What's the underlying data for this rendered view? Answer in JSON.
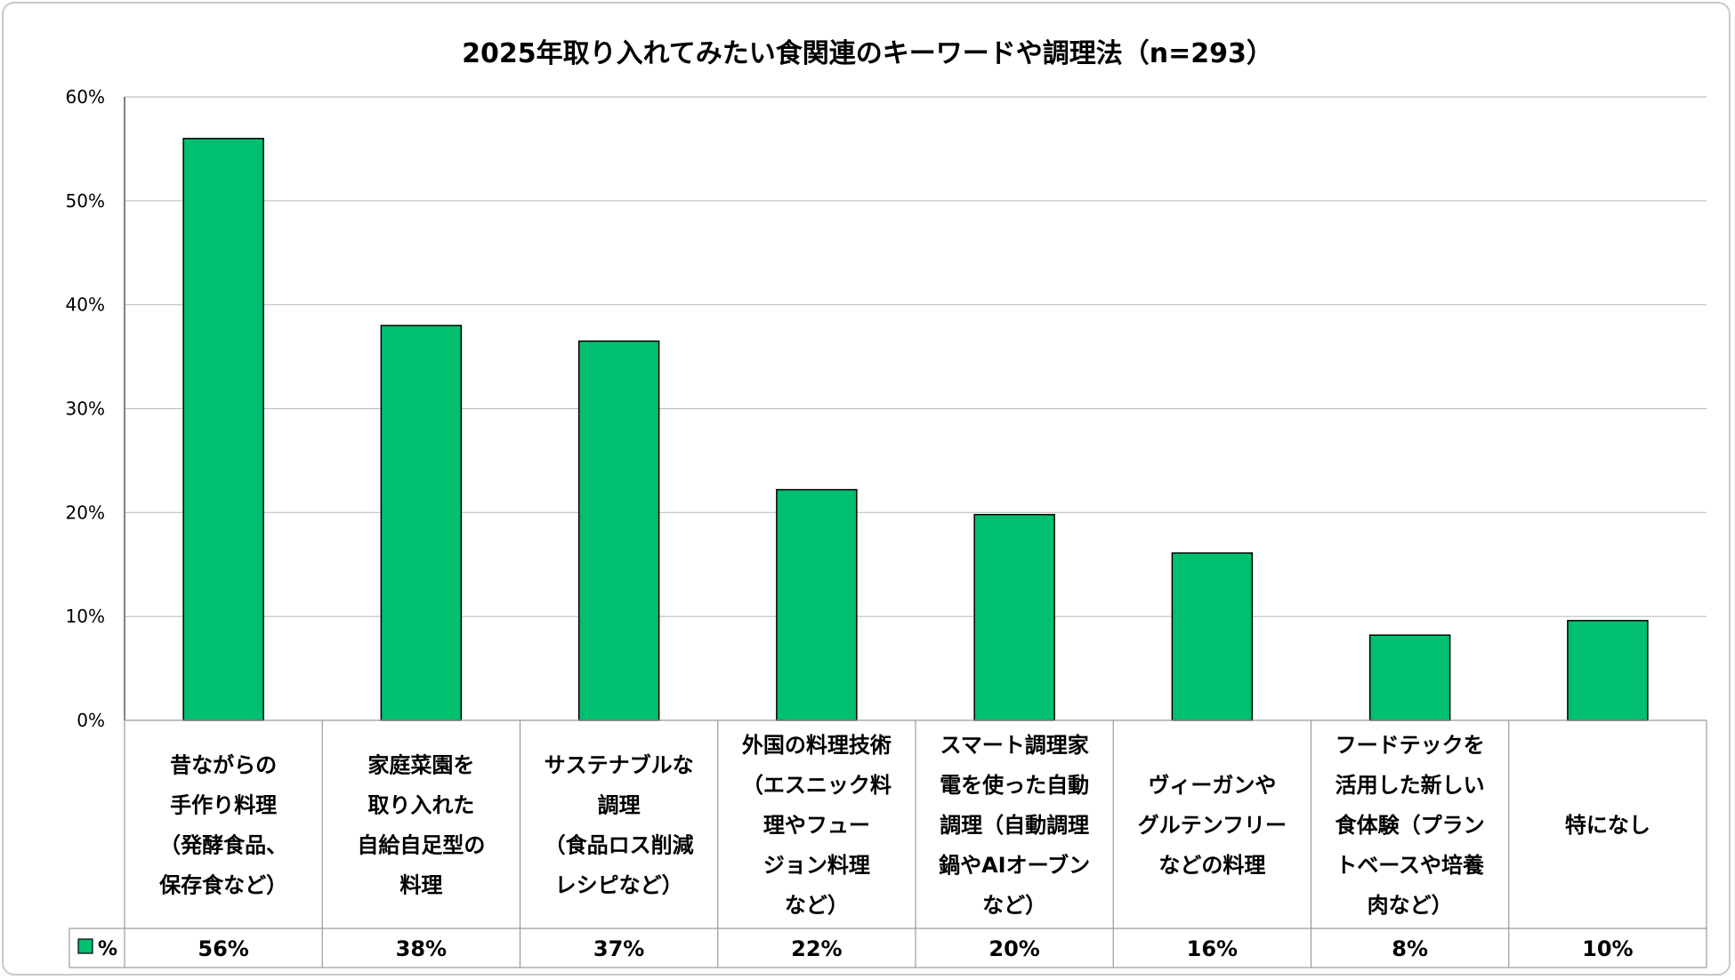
{
  "chart_data": {
    "type": "bar",
    "title": "2025年取り入れてみたい食関連のキーワードや調理法（n=293）",
    "series_name": "%",
    "color": "#00bf6f",
    "ylim": [
      0,
      60
    ],
    "yticks": [
      "0%",
      "10%",
      "20%",
      "30%",
      "40%",
      "50%",
      "60%"
    ],
    "categories": [
      [
        "昔ながらの",
        "手作り料理",
        "（発酵食品、",
        "保存食など）"
      ],
      [
        "家庭菜園を",
        "取り入れた",
        "自給自足型の",
        "料理"
      ],
      [
        "サステナブルな",
        "調理",
        "（食品ロス削減",
        "レシピなど）"
      ],
      [
        "外国の料理技術",
        "（エスニック料",
        "理やフュー",
        "ジョン料理",
        "など）"
      ],
      [
        "スマート調理家",
        "電を使った自動",
        "調理（自動調理",
        "鍋やAIオーブン",
        "など）"
      ],
      [
        "ヴィーガンや",
        "グルテンフリー",
        "などの料理"
      ],
      [
        "フードテックを",
        "活用した新しい",
        "食体験（プラン",
        "トベースや培養",
        "肉など）"
      ],
      [
        "特になし"
      ]
    ],
    "values": [
      56,
      38,
      36.5,
      22.2,
      19.8,
      16.1,
      8.2,
      9.6
    ],
    "value_labels": [
      "56%",
      "38%",
      "37%",
      "22%",
      "20%",
      "16%",
      "8%",
      "10%"
    ]
  }
}
